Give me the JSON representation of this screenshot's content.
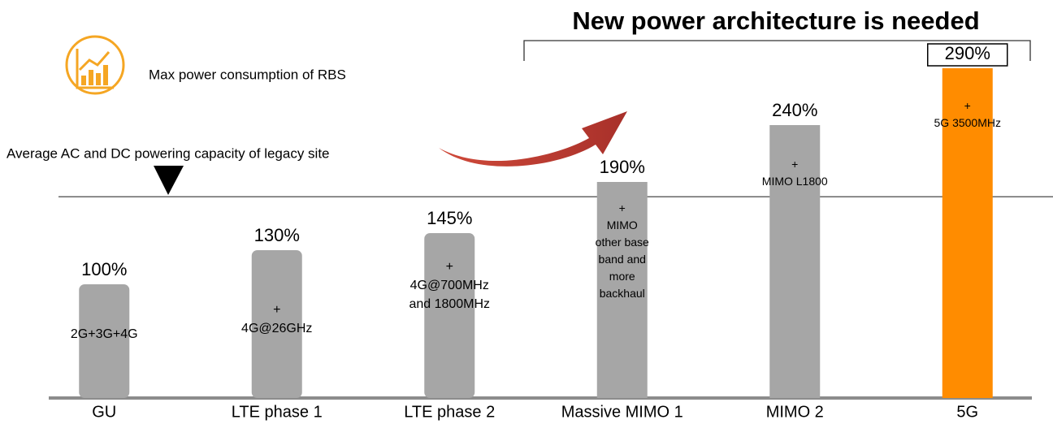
{
  "chart_data": {
    "type": "bar",
    "title": "New power architecture is needed",
    "legend_text": "Max power consumption of RBS",
    "threshold_label": "Average AC and DC powering capacity of legacy site",
    "threshold": 177,
    "categories": [
      "GU",
      "LTE phase 1",
      "LTE phase 2",
      "Massive MIMO  1",
      "MIMO 2",
      "5G"
    ],
    "values": [
      100,
      130,
      145,
      190,
      240,
      290
    ],
    "value_labels": [
      "100%",
      "130%",
      "145%",
      "190%",
      "240%",
      "290%"
    ],
    "bar_notes": [
      "2G+3G+4G",
      "+\n4G@26GHz",
      "+\n4G@700MHz\nand 1800MHz",
      "+\nMIMO\nother base\nband and\nmore\nbackhaul",
      "+\nMIMO L1800",
      "+\n5G 3500MHz"
    ],
    "colors": [
      "#a6a6a6",
      "#a6a6a6",
      "#a6a6a6",
      "#a6a6a6",
      "#a6a6a6",
      "#ff8c00"
    ],
    "ylim": [
      0,
      290
    ]
  }
}
